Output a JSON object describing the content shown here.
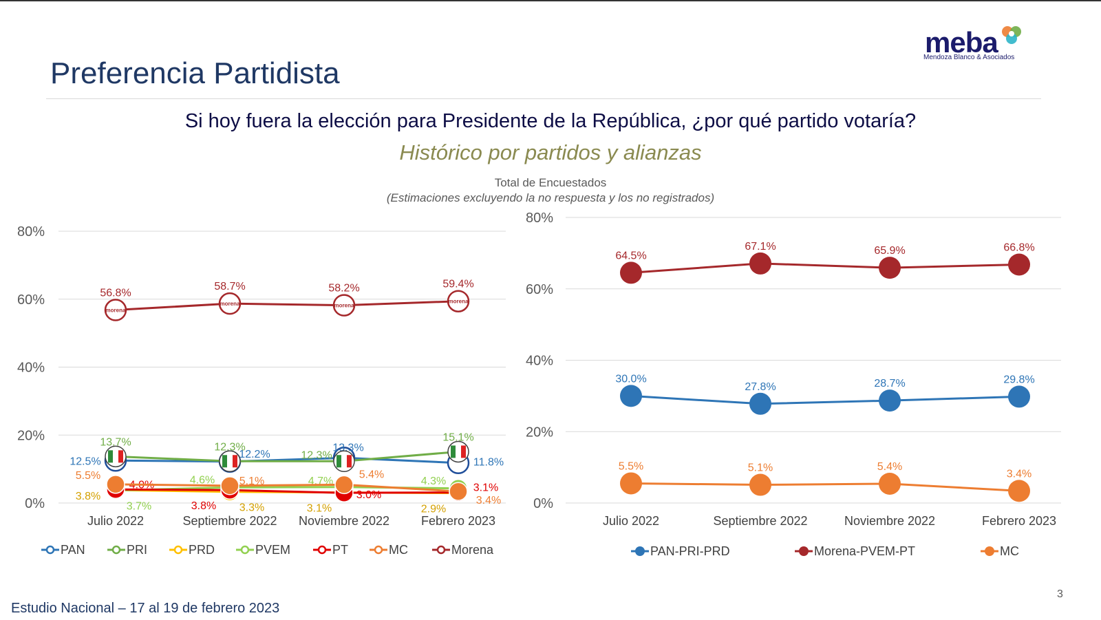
{
  "header": {
    "title": "Preferencia Partidista",
    "logo_word": "meba",
    "logo_sub": "Mendoza Blanco & Asociados"
  },
  "question": "Si hoy fuera la elección para Presidente de la República, ¿por qué partido votaría?",
  "subtitle": "Histórico por partidos y alianzas",
  "base": "Total de Encuestados",
  "base_note": "(Estimaciones excluyendo la no respuesta y los no registrados)",
  "footer": "Estudio Nacional – 17 al 19 de febrero 2023",
  "page_number": "3",
  "chart_data": [
    {
      "type": "line",
      "categories": [
        "Julio 2022",
        "Septiembre 2022",
        "Noviembre 2022",
        "Febrero 2023"
      ],
      "ylim": [
        0,
        80
      ],
      "yticks": [
        "0%",
        "20%",
        "40%",
        "60%",
        "80%"
      ],
      "grid": true,
      "legend": "bottom",
      "series": [
        {
          "name": "PAN",
          "values": [
            12.5,
            12.2,
            13.3,
            11.8
          ],
          "labels": [
            "12.5%",
            "12.2%",
            "13.3%",
            "11.8%"
          ],
          "color": "#2e75b6",
          "icon": "pan-icon"
        },
        {
          "name": "PRI",
          "values": [
            13.7,
            12.3,
            12.3,
            15.1
          ],
          "labels": [
            "13.7%",
            "12.3%",
            "12.3%",
            "15.1%"
          ],
          "color": "#70ad47",
          "icon": "pri-icon"
        },
        {
          "name": "PRD",
          "values": [
            3.8,
            3.3,
            3.1,
            2.9
          ],
          "labels": [
            "3.8%",
            "3.3%",
            "3.1%",
            "2.9%"
          ],
          "color": "#ffc000",
          "icon": "prd-icon"
        },
        {
          "name": "PVEM",
          "values": [
            3.7,
            4.6,
            4.7,
            4.3
          ],
          "labels": [
            "3.7%",
            "4.6%",
            "4.7%",
            "4.3%"
          ],
          "color": "#92d050",
          "icon": "pvem-icon"
        },
        {
          "name": "PT",
          "values": [
            4.0,
            3.8,
            3.0,
            3.1
          ],
          "labels": [
            "4.0%",
            "3.8%",
            "3.0%",
            "3.1%"
          ],
          "color": "#e00000",
          "icon": "pt-icon"
        },
        {
          "name": "MC",
          "values": [
            5.5,
            5.1,
            5.4,
            3.4
          ],
          "labels": [
            "5.5%",
            "5.1%",
            "5.4%",
            "3.4%"
          ],
          "color": "#ed7d31",
          "icon": "mc-icon"
        },
        {
          "name": "Morena",
          "values": [
            56.8,
            58.7,
            58.2,
            59.4
          ],
          "labels": [
            "56.8%",
            "58.7%",
            "58.2%",
            "59.4%"
          ],
          "color": "#a5282b",
          "icon": "morena-icon",
          "marker_text": "morena"
        }
      ]
    },
    {
      "type": "line",
      "categories": [
        "Julio 2022",
        "Septiembre 2022",
        "Noviembre 2022",
        "Febrero 2023"
      ],
      "ylim": [
        0,
        80
      ],
      "yticks": [
        "0%",
        "20%",
        "40%",
        "60%",
        "80%"
      ],
      "grid": true,
      "legend": "bottom",
      "series": [
        {
          "name": "PAN-PRI-PRD",
          "values": [
            30.0,
            27.8,
            28.7,
            29.8
          ],
          "labels": [
            "30.0%",
            "27.8%",
            "28.7%",
            "29.8%"
          ],
          "color": "#2e75b6"
        },
        {
          "name": "Morena-PVEM-PT",
          "values": [
            64.5,
            67.1,
            65.9,
            66.8
          ],
          "labels": [
            "64.5%",
            "67.1%",
            "65.9%",
            "66.8%"
          ],
          "color": "#a5282b"
        },
        {
          "name": "MC",
          "values": [
            5.5,
            5.1,
            5.4,
            3.4
          ],
          "labels": [
            "5.5%",
            "5.1%",
            "5.4%",
            "3.4%"
          ],
          "color": "#ed7d31"
        }
      ]
    }
  ]
}
